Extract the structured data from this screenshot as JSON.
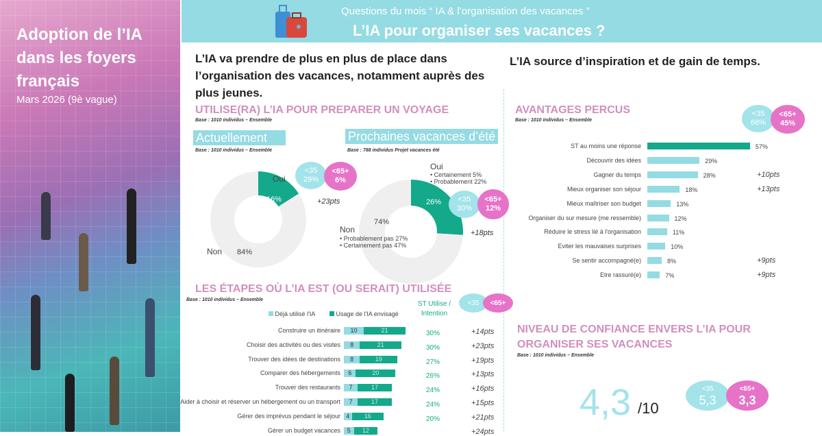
{
  "left": {
    "title": "Adoption de l’IA dans les foyers français",
    "subtitle": "Mars 2026 (9è vague)"
  },
  "header": {
    "question": "Questions du mois “ IA & l’organisation des vacances ”",
    "title": "L’IA pour organiser ses vacances ?",
    "icon": "suitcase-icon"
  },
  "headline_left": "L’IA va prendre de plus en plus de place dans l’organisation des vacances, notamment auprès des plus jeunes.",
  "headline_right": "L’IA source d’inspiration et de gain de temps.",
  "colors": {
    "teal_dark": "#13a98a",
    "teal_light": "#94dbe3",
    "pink": "#e673c8",
    "title_pink": "#d18fbd",
    "grey": "#efefef"
  },
  "chart_data": [
    {
      "type": "pie",
      "title": "UTILISE(RA) L’IA POUR PREPARER UN VOYAGE",
      "base": "Base : 1010 individus – Ensemble",
      "subtitle": "Actuellement",
      "sub_base": "Base : 1010 individus – Ensemble",
      "slices": [
        {
          "name": "Oui",
          "value": 16,
          "label": "16%"
        },
        {
          "name": "Non",
          "value": 84,
          "label": "84%"
        }
      ],
      "age": {
        "young_label": "<35",
        "young": "29%",
        "old_label": "<65+",
        "old": "6%",
        "diff": "+23pts"
      }
    },
    {
      "type": "pie",
      "subtitle": "Prochaines vacances d’été",
      "sub_base": "Base : 788 individus Projet vacances été",
      "slices": [
        {
          "name": "Oui",
          "value": 26,
          "label": "26%",
          "details": [
            "Certainement 5%",
            "Probablement 22%"
          ]
        },
        {
          "name": "Non",
          "value": 74,
          "label": "74%",
          "details": [
            "Probablement pas 27%",
            "Certainement pas 47%"
          ]
        }
      ],
      "age": {
        "young_label": "<35",
        "young": "30%",
        "old_label": "<65+",
        "old": "12%",
        "diff": "+18pts"
      }
    },
    {
      "type": "bar",
      "stacked": true,
      "orientation": "horizontal",
      "title": "LES ÉTAPES OÙ L’IA EST (OU SERAIT) UTILISÉE",
      "base": "Base : 1010 individus – Ensemble",
      "legend": [
        "Déjà utilisé l'IA",
        "Usage de l'IA envisagé"
      ],
      "st_header": "ST Utilise / Intention",
      "age": {
        "young_label": "<35",
        "old_label": "<65+"
      },
      "categories": [
        "Construire un itinéraire",
        "Choisir des activités ou des visites",
        "Trouver des idées de destinations",
        "Comparer des hébergements",
        "Trouver des restaurants",
        "Aider à choisir et réserver un hébergement ou un transport",
        "Gérer des imprévus pendant le séjour",
        "Gérer un budget vacances"
      ],
      "series": [
        {
          "name": "Déjà utilisé l'IA",
          "values": [
            10,
            8,
            8,
            6,
            7,
            7,
            4,
            5
          ]
        },
        {
          "name": "Usage de l'IA envisagé",
          "values": [
            21,
            21,
            19,
            20,
            17,
            17,
            16,
            12
          ]
        }
      ],
      "st": [
        "30%",
        "30%",
        "27%",
        "26%",
        "24%",
        "24%",
        "20%",
        ""
      ],
      "diff": [
        "+14pts",
        "+23pts",
        "+19pts",
        "+13pts",
        "+16pts",
        "+15pts",
        "+21pts",
        "+24pts"
      ]
    },
    {
      "type": "bar",
      "orientation": "horizontal",
      "title": "AVANTAGES PERCUS",
      "base": "Base : 1010 individus – Ensemble",
      "age": {
        "young_label": "<35",
        "young": "68%",
        "old_label": "<65+",
        "old": "45%"
      },
      "categories": [
        "ST au moins une réponse",
        "Découvrir des idées",
        "Gagner du temps",
        "Mieux organiser son séjour",
        "Mieux maîtriser son budget",
        "Organiser du sur mesure (me ressemble)",
        "Réduire le stress lié à l'organisation",
        "Eviter les mauvaises surprises",
        "Se sentir accompagné(e)",
        "Etre rassuré(e)"
      ],
      "values": [
        57,
        29,
        28,
        18,
        13,
        12,
        11,
        10,
        8,
        7
      ],
      "diff": [
        "",
        "",
        "+10pts",
        "+13pts",
        "",
        "",
        "",
        "",
        "+9pts",
        "+9pts"
      ]
    },
    {
      "type": "table",
      "title": "NIVEAU DE CONFIANCE ENVERS L’IA POUR ORGANISER SES VACANCES",
      "base": "Base : 1010 individus – Ensemble",
      "score": "4,3",
      "scale": "/10",
      "age": {
        "young_label": "<35",
        "young": "5,3",
        "old_label": "<65+",
        "old": "3,3"
      }
    }
  ]
}
